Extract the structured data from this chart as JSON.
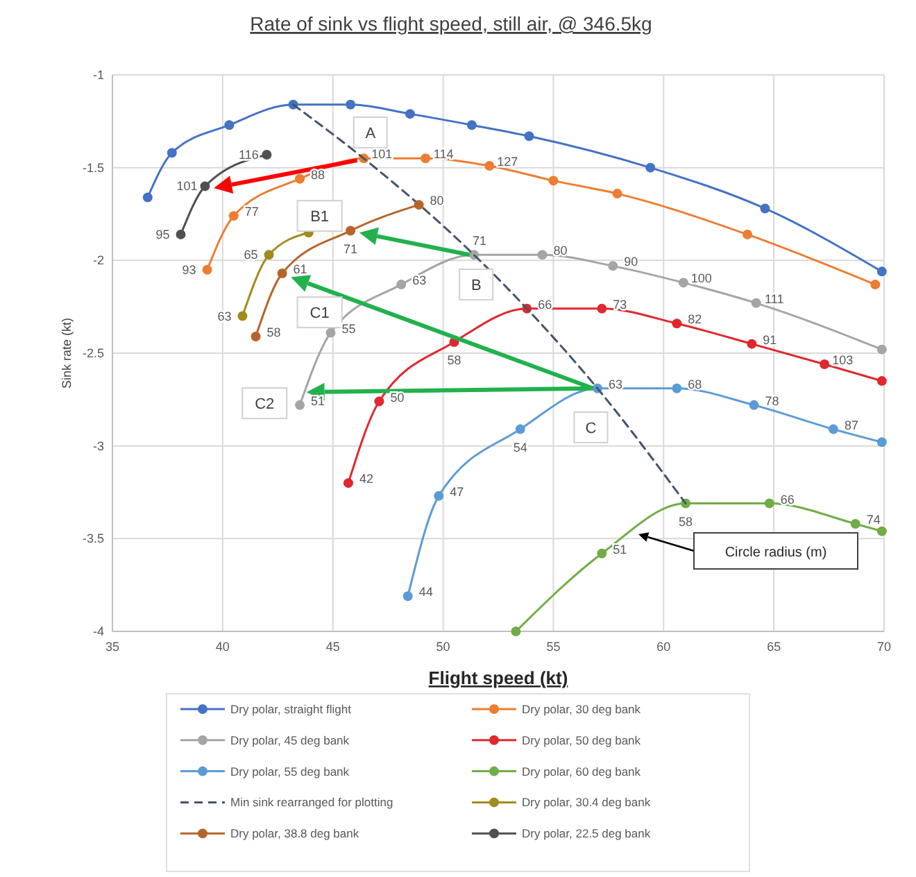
{
  "chart_data": {
    "type": "line",
    "title": "Rate of sink vs flight speed, still air, @ 346.5kg",
    "xlabel": "Flight speed (kt)",
    "ylabel": "Sink rate (kt)",
    "xlim": [
      35,
      70
    ],
    "xticks": [
      35,
      40,
      45,
      50,
      55,
      60,
      65,
      70
    ],
    "ylim": [
      -4,
      -1
    ],
    "yticks": [
      -4,
      -3.5,
      -3,
      -2.5,
      -2,
      -1.5,
      -1
    ],
    "grid": true,
    "legend": "bottom",
    "marker": "circle",
    "series": [
      {
        "name": "Dry polar, straight flight",
        "color": "#4472c4",
        "x": [
          36.6,
          37.7,
          40.3,
          43.2,
          45.8,
          48.5,
          51.3,
          53.9,
          59.4,
          64.6,
          69.9
        ],
        "values": [
          -1.66,
          -1.42,
          -1.27,
          -1.16,
          -1.16,
          -1.21,
          -1.27,
          -1.33,
          -1.5,
          -1.72,
          -2.06
        ]
      },
      {
        "name": "Dry polar, 30 deg bank",
        "color": "#ed7d31",
        "x": [
          39.3,
          40.5,
          43.5,
          46.4,
          49.2,
          52.1,
          55,
          57.9,
          63.8,
          69.6
        ],
        "values": [
          -2.05,
          -1.76,
          -1.56,
          -1.45,
          -1.45,
          -1.49,
          -1.57,
          -1.64,
          -1.86,
          -2.13
        ]
      },
      {
        "name": "Dry polar, 45 deg bank",
        "color": "#a5a5a5",
        "x": [
          43.5,
          44.9,
          48.1,
          51.4,
          54.5,
          57.7,
          60.9,
          64.2,
          69.9
        ],
        "values": [
          -2.78,
          -2.39,
          -2.13,
          -1.97,
          -1.97,
          -2.03,
          -2.12,
          -2.23,
          -2.48
        ]
      },
      {
        "name": "Dry polar, 50 deg bank",
        "color": "#e0282e",
        "x": [
          45.7,
          47.1,
          50.5,
          53.8,
          57.2,
          60.6,
          64,
          67.3,
          69.9
        ],
        "values": [
          -3.2,
          -2.76,
          -2.44,
          -2.26,
          -2.26,
          -2.34,
          -2.45,
          -2.56,
          -2.65
        ]
      },
      {
        "name": "Dry polar, 55 deg bank",
        "color": "#5b9bd5",
        "x": [
          48.4,
          49.8,
          53.5,
          57,
          60.6,
          64.1,
          67.7,
          69.9
        ],
        "values": [
          -3.81,
          -3.27,
          -2.91,
          -2.69,
          -2.69,
          -2.78,
          -2.91,
          -2.98
        ]
      },
      {
        "name": "Dry polar, 60 deg bank",
        "color": "#70ad47",
        "x": [
          53.3,
          57.2,
          61,
          64.8,
          68.7,
          69.9
        ],
        "values": [
          -4,
          -3.58,
          -3.31,
          -3.31,
          -3.42,
          -3.46
        ]
      },
      {
        "name": "Min sink rearranged for plotting",
        "color": "#44546a",
        "marker": "none",
        "line_style": "dashed",
        "x": [
          43.2,
          46.4,
          51.4,
          53.8,
          57,
          61
        ],
        "values": [
          -1.16,
          -1.45,
          -1.97,
          -2.26,
          -2.69,
          -3.31
        ]
      },
      {
        "name": "Dry polar, 30.4 deg bank",
        "color": "#a08c1c",
        "x": [
          40.9,
          42.1,
          43.9
        ],
        "values": [
          -2.3,
          -1.97,
          -1.85
        ]
      },
      {
        "name": "Dry polar, 38.8 deg bank",
        "color": "#b5652a",
        "x": [
          41.5,
          42.7,
          45.8,
          48.9
        ],
        "values": [
          -2.41,
          -2.07,
          -1.84,
          -1.7
        ]
      },
      {
        "name": "Dry polar, 22.5 deg bank",
        "color": "#505050",
        "x": [
          38.1,
          39.2,
          42
        ],
        "values": [
          -1.86,
          -1.6,
          -1.43
        ]
      }
    ],
    "annotations": [
      {
        "text": "A",
        "x": 46.7,
        "y": -1.31
      },
      {
        "text": "B",
        "x": 51.5,
        "y": -2.13
      },
      {
        "text": "C",
        "x": 56.7,
        "y": -2.9
      },
      {
        "text": "B1",
        "x": 44.4,
        "y": -1.76
      },
      {
        "text": "C1",
        "x": 44.4,
        "y": -2.28
      },
      {
        "text": "C2",
        "x": 41.9,
        "y": -2.77
      },
      {
        "text": "93",
        "x": 39.3,
        "y": -2.05
      },
      {
        "text": "77",
        "x": 40.5,
        "y": -1.76
      },
      {
        "text": "88",
        "x": 43.5,
        "y": -1.56
      },
      {
        "text": "101",
        "x": 46.4,
        "y": -1.45
      },
      {
        "text": "114",
        "x": 49.2,
        "y": -1.45
      },
      {
        "text": "127",
        "x": 52.1,
        "y": -1.49
      },
      {
        "text": "51",
        "x": 43.5,
        "y": -2.78
      },
      {
        "text": "55",
        "x": 44.9,
        "y": -2.39
      },
      {
        "text": "63",
        "x": 48.1,
        "y": -2.13
      },
      {
        "text": "71",
        "x": 51.4,
        "y": -1.97
      },
      {
        "text": "80",
        "x": 54.5,
        "y": -1.97
      },
      {
        "text": "90",
        "x": 57.7,
        "y": -2.03
      },
      {
        "text": "100",
        "x": 60.9,
        "y": -2.12
      },
      {
        "text": "111",
        "x": 64.2,
        "y": -2.23
      },
      {
        "text": "42",
        "x": 45.7,
        "y": -3.2
      },
      {
        "text": "50",
        "x": 47.1,
        "y": -2.76
      },
      {
        "text": "58",
        "x": 50.5,
        "y": -2.44
      },
      {
        "text": "66",
        "x": 53.8,
        "y": -2.26
      },
      {
        "text": "73",
        "x": 57.2,
        "y": -2.26
      },
      {
        "text": "82",
        "x": 60.6,
        "y": -2.34
      },
      {
        "text": "91",
        "x": 64,
        "y": -2.45
      },
      {
        "text": "103",
        "x": 67.3,
        "y": -2.56
      },
      {
        "text": "44",
        "x": 48.4,
        "y": -3.81
      },
      {
        "text": "47",
        "x": 49.8,
        "y": -3.27
      },
      {
        "text": "54",
        "x": 53.5,
        "y": -2.91
      },
      {
        "text": "63",
        "x": 57,
        "y": -2.69
      },
      {
        "text": "68",
        "x": 60.6,
        "y": -2.69
      },
      {
        "text": "78",
        "x": 64.1,
        "y": -2.78
      },
      {
        "text": "87",
        "x": 67.7,
        "y": -2.91
      },
      {
        "text": "51",
        "x": 57.2,
        "y": -3.58
      },
      {
        "text": "58",
        "x": 61,
        "y": -3.31
      },
      {
        "text": "66",
        "x": 64.8,
        "y": -3.31
      },
      {
        "text": "74",
        "x": 68.7,
        "y": -3.42
      },
      {
        "text": "63",
        "x": 40.9,
        "y": -2.3
      },
      {
        "text": "65",
        "x": 42.1,
        "y": -1.97
      },
      {
        "text": "58",
        "x": 41.5,
        "y": -2.41
      },
      {
        "text": "61",
        "x": 42.7,
        "y": -2.07
      },
      {
        "text": "71",
        "x": 45.8,
        "y": -1.84
      },
      {
        "text": "80",
        "x": 48.9,
        "y": -1.7
      },
      {
        "text": "95",
        "x": 38.1,
        "y": -1.86
      },
      {
        "text": "101",
        "x": 39.2,
        "y": -1.6
      },
      {
        "text": "116",
        "x": 42,
        "y": -1.43
      },
      "Circle radius (m)"
    ]
  }
}
